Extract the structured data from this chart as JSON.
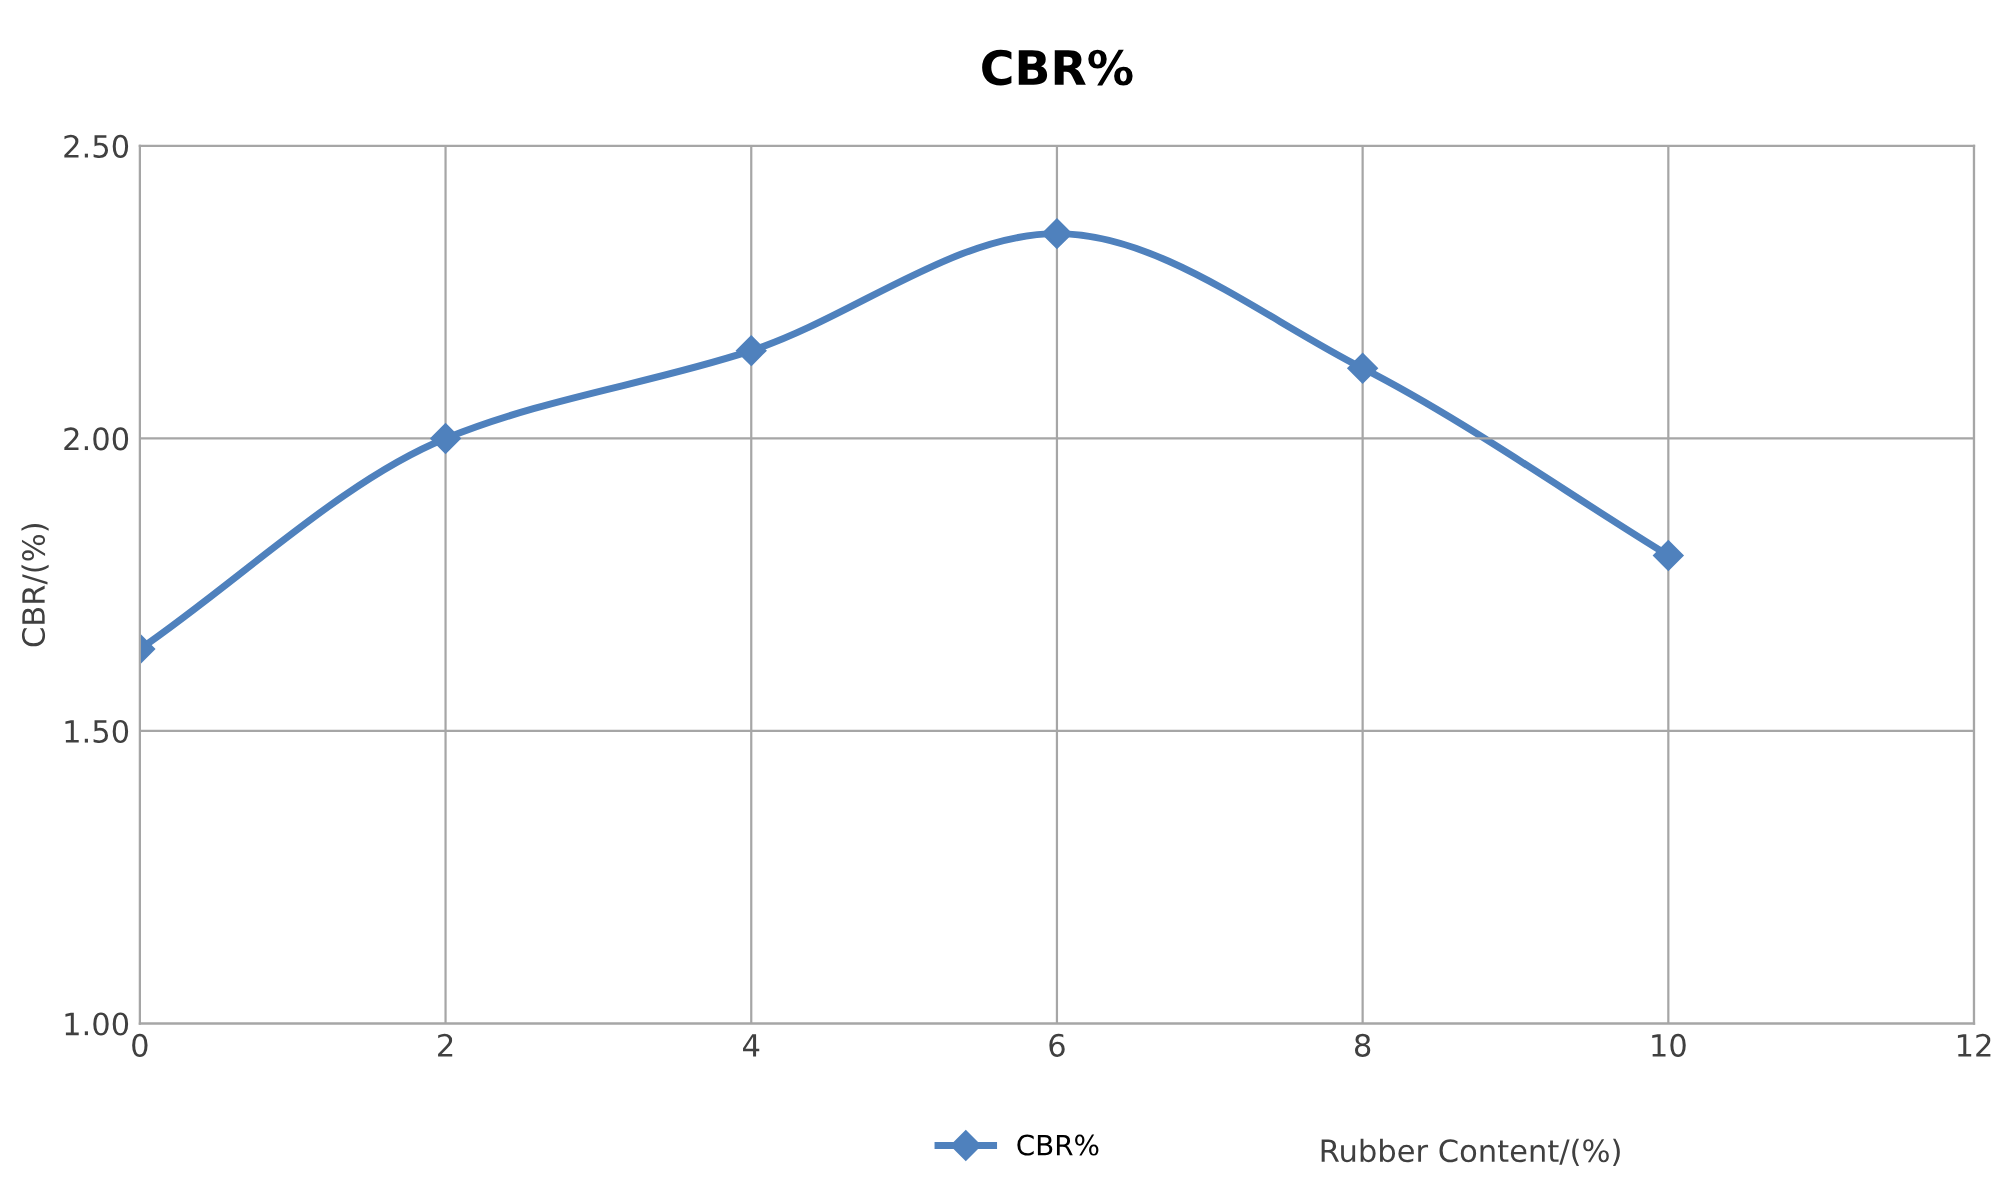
{
  "chart_data": {
    "type": "line",
    "title": "CBR%",
    "xlabel": "Rubber Content/(%)",
    "ylabel": "CBR/(%)",
    "x": [
      0,
      2,
      4,
      6,
      8,
      10
    ],
    "series": [
      {
        "name": "CBR%",
        "color": "#4f81bd",
        "values": [
          1.64,
          2.0,
          2.15,
          2.35,
          2.12,
          1.8
        ]
      }
    ],
    "xlim": [
      0,
      12
    ],
    "xticks": [
      0,
      2,
      4,
      6,
      8,
      10,
      12
    ],
    "ylim": [
      1.0,
      2.5
    ],
    "yticks": [
      {
        "value": 1.0,
        "label": "1.00"
      },
      {
        "value": 1.5,
        "label": "1.50"
      },
      {
        "value": 2.0,
        "label": "2.00"
      },
      {
        "value": 2.5,
        "label": "2.50"
      }
    ],
    "grid": true,
    "legend": "bottom",
    "marker": "diamond",
    "line_style": "solid"
  }
}
